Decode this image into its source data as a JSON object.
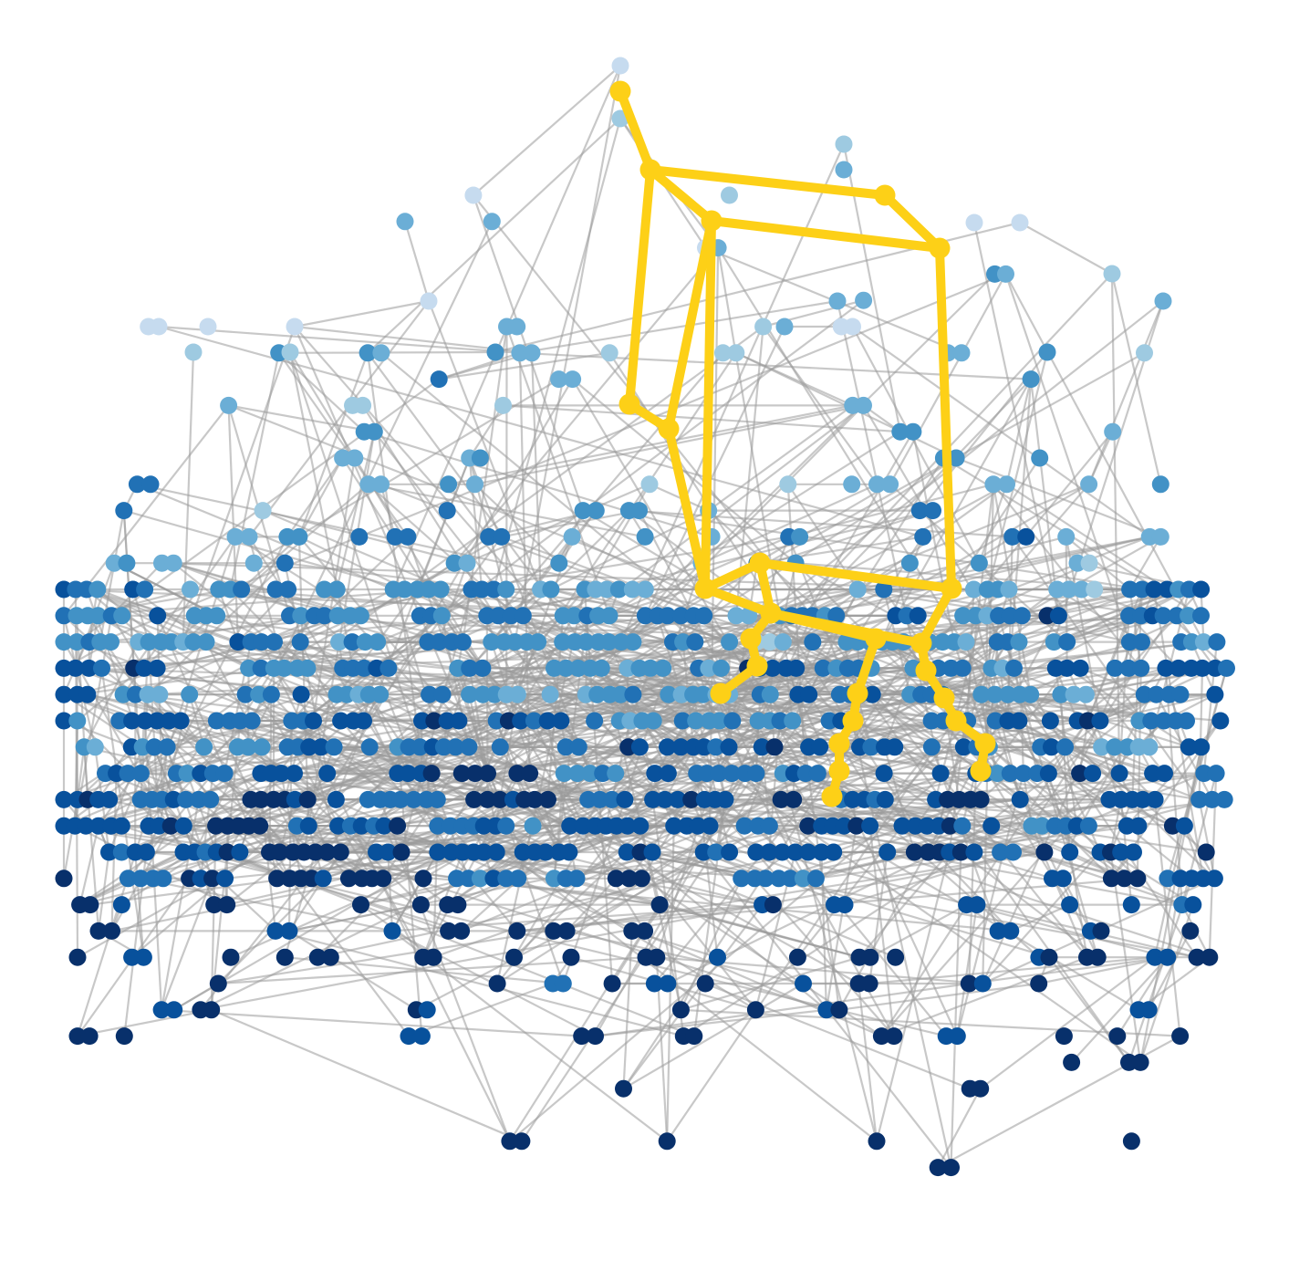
{
  "graph": {
    "background": "#ffffff",
    "edge_color": "#9a9a9a",
    "highlight_color": "#fdd017",
    "node_palette": [
      "#c6dbef",
      "#9ecae1",
      "#6baed6",
      "#4292c6",
      "#2171b5",
      "#08519c",
      "#08306b"
    ],
    "node_levels": 7,
    "highlighted_nodes": 26,
    "highlighted_edges": 29
  }
}
